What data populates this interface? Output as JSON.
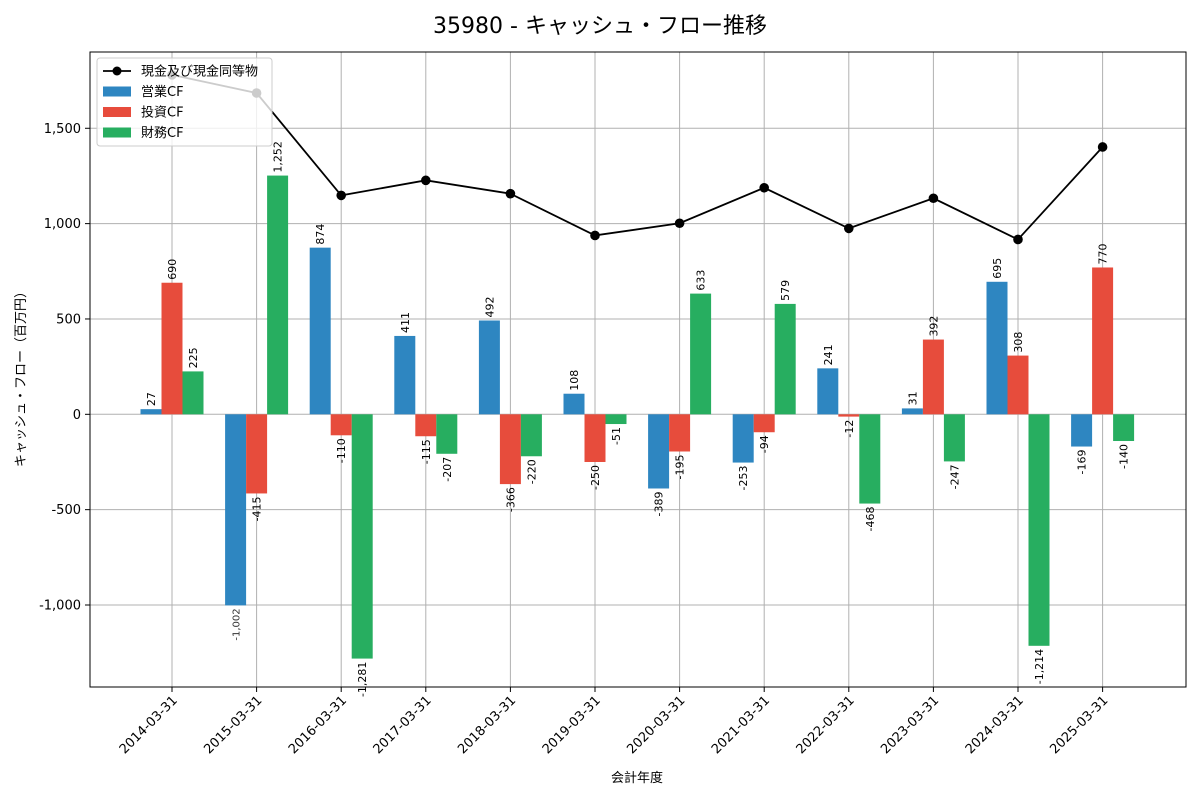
{
  "chart_data": {
    "type": "bar",
    "title": "35980 - キャッシュ・フロー推移",
    "xlabel": "会計年度",
    "ylabel": "キャッシュ・フロー（百万円）",
    "ylim": [
      -1430,
      1900
    ],
    "yticks": [
      -1000,
      -500,
      0,
      500,
      1000,
      1500
    ],
    "ytick_labels": [
      "-1,000",
      "-500",
      "0",
      "500",
      "1,000",
      "1,500"
    ],
    "grid": true,
    "legend_position": "top-left",
    "categories": [
      "2014-03-31",
      "2015-03-31",
      "2016-03-31",
      "2017-03-31",
      "2018-03-31",
      "2019-03-31",
      "2020-03-31",
      "2021-03-31",
      "2022-03-31",
      "2023-03-31",
      "2024-03-31",
      "2025-03-31"
    ],
    "series": [
      {
        "name": "営業CF",
        "kind": "bar",
        "color": "#2e86c1",
        "values": [
          27,
          -1002,
          874,
          411,
          492,
          108,
          -389,
          -253,
          241,
          31,
          695,
          -169
        ],
        "labels": [
          "27",
          "-1,002",
          "874",
          "411",
          "492",
          "108",
          "-389",
          "-253",
          "241",
          "31",
          "695",
          "-169"
        ]
      },
      {
        "name": "投資CF",
        "kind": "bar",
        "color": "#e74c3c",
        "values": [
          690,
          -415,
          -110,
          -115,
          -366,
          -250,
          -195,
          -94,
          -12,
          392,
          308,
          770
        ],
        "labels": [
          "690",
          "-415",
          "-110",
          "-115",
          "-366",
          "-250",
          "-195",
          "-94",
          "-12",
          "392",
          "308",
          "770"
        ]
      },
      {
        "name": "財務CF",
        "kind": "bar",
        "color": "#27ae60",
        "values": [
          225,
          1252,
          -1281,
          -207,
          -220,
          -51,
          633,
          579,
          -468,
          -247,
          -1214,
          -140
        ],
        "labels": [
          "225",
          "1,252",
          "-1,281",
          "-207",
          "-220",
          "-51",
          "633",
          "579",
          "-468",
          "-247",
          "-1,214",
          "-140"
        ]
      },
      {
        "name": "現金及び現金同等物",
        "kind": "line",
        "color": "#000000",
        "values": [
          1780,
          1685,
          1148,
          1227,
          1157,
          938,
          1002,
          1188,
          975,
          1133,
          917,
          1402
        ]
      }
    ]
  }
}
